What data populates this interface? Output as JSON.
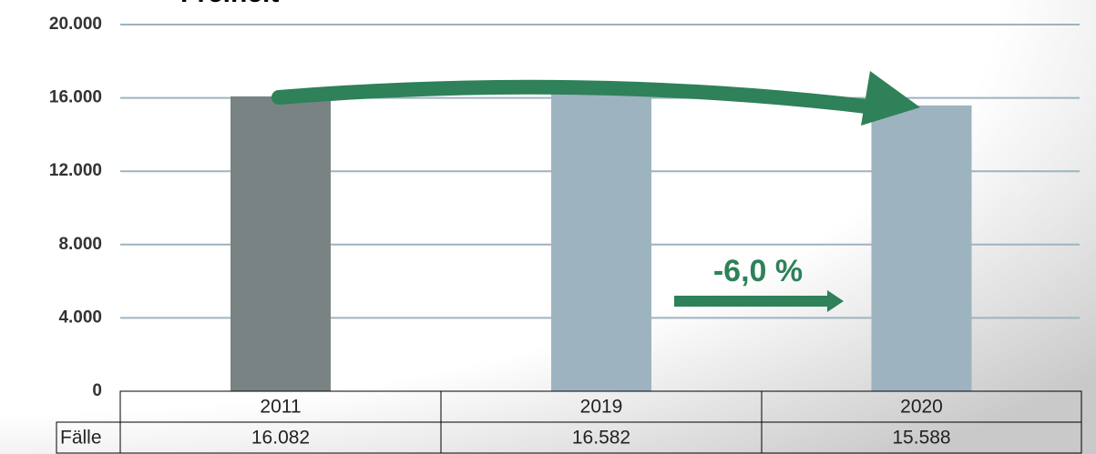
{
  "chart_data": {
    "type": "bar",
    "title": "Freiheit",
    "categories": [
      "2011",
      "2019",
      "2020"
    ],
    "series": [
      {
        "name": "Fälle",
        "colors": [
          "#7a8383",
          "#9db3c0",
          "#9db3c0"
        ],
        "values": [
          16082,
          16582,
          15588
        ],
        "value_labels": [
          "16.082",
          "16.582",
          "15.588"
        ]
      }
    ],
    "ylim": [
      0,
      20000
    ],
    "yticks": [
      0,
      {
        "value": 4000,
        "label": "4.000"
      },
      {
        "value": 8000,
        "label": "8.000"
      },
      {
        "value": 12000,
        "label": "12.000"
      },
      {
        "value": 16000,
        "label": "16.000"
      },
      {
        "value": 20000,
        "label": "20.000"
      }
    ],
    "grid": true,
    "grid_color": "#9db3c0",
    "annotation": "-6,0 %"
  }
}
